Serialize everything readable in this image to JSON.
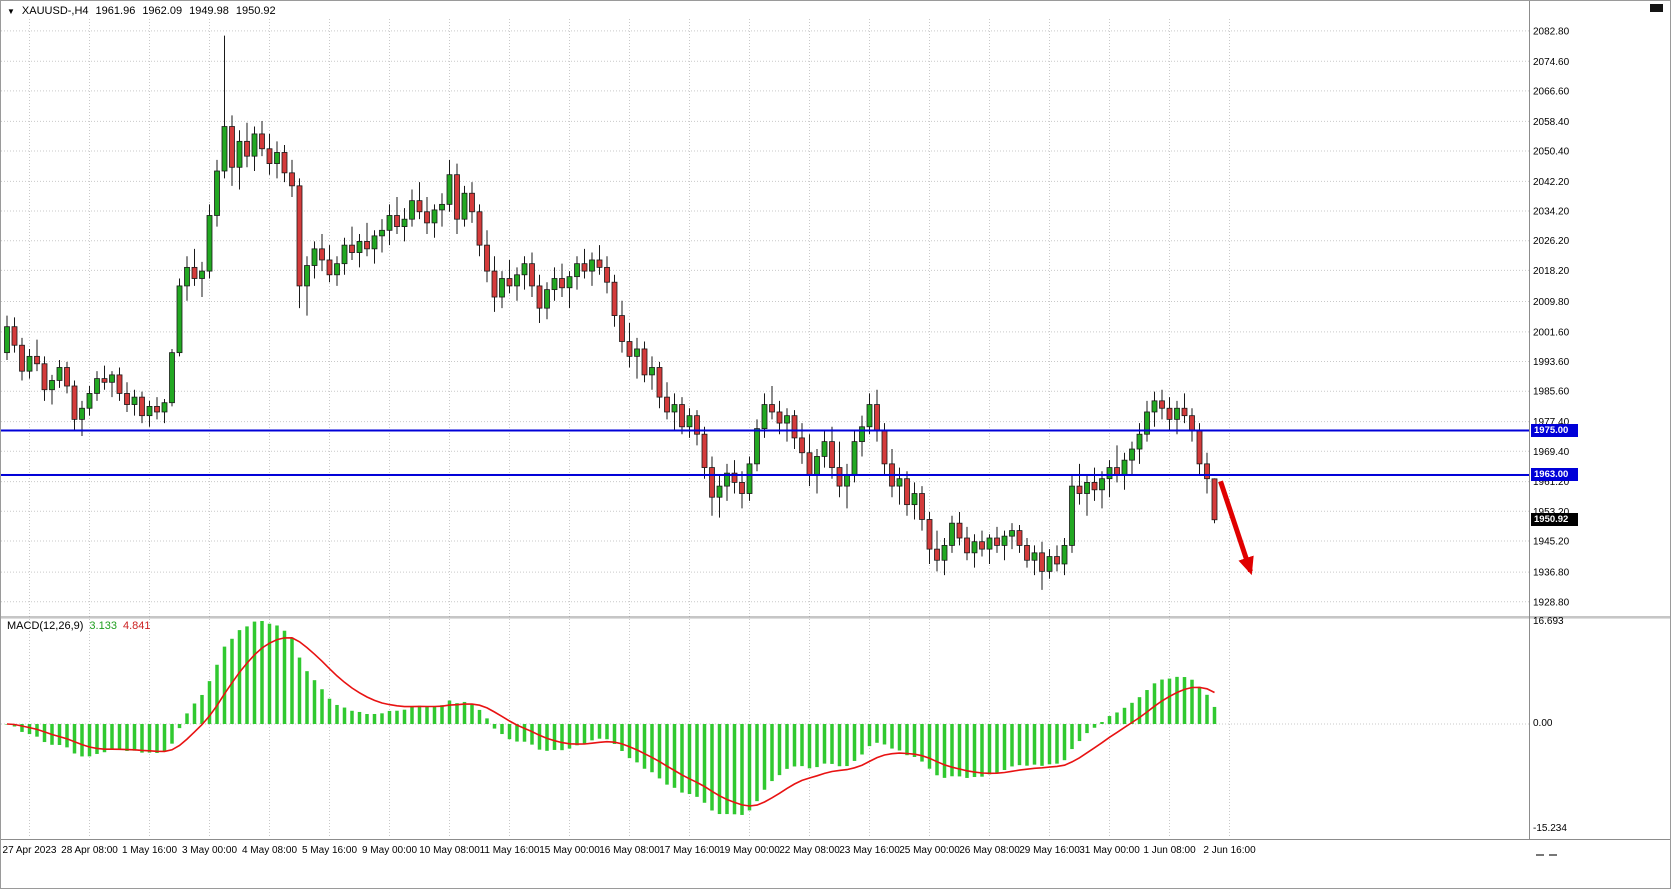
{
  "header": {
    "symbol_period": "XAUUSD-,H4",
    "open": "1961.96",
    "high": "1962.09",
    "low": "1949.98",
    "close": "1950.92"
  },
  "colors": {
    "candle_up": "#22a822",
    "candle_down": "#d43b3b",
    "wick": "#1a1a1a",
    "grid": "#c9c9c9",
    "support_line": "#0000d8",
    "arrow": "#e00000",
    "macd_histogram": "#30c930",
    "macd_signal": "#e81212",
    "current_price_tag": "#000000"
  },
  "chart_data": [
    {
      "type": "candlestick",
      "name": "XAUUSD H4 price panel",
      "x_labels": [
        "27 Apr 2023",
        "28 Apr 08:00",
        "1 May 16:00",
        "3 May 00:00",
        "4 May 08:00",
        "5 May 16:00",
        "9 May 00:00",
        "10 May 08:00",
        "11 May 16:00",
        "15 May 00:00",
        "16 May 08:00",
        "17 May 16:00",
        "19 May 00:00",
        "22 May 08:00",
        "23 May 16:00",
        "25 May 00:00",
        "26 May 08:00",
        "29 May 16:00",
        "31 May 00:00",
        "1 Jun 08:00",
        "2 Jun 16:00"
      ],
      "first_label_bar_index": 3,
      "label_every_bars": 8,
      "y_axis_labels": [
        "2082.80",
        "2074.60",
        "2066.60",
        "2058.40",
        "2050.40",
        "2042.20",
        "2034.20",
        "2026.20",
        "2018.20",
        "2009.80",
        "2001.60",
        "1993.60",
        "1985.60",
        "1977.40",
        "1969.40",
        "1961.20",
        "1953.20",
        "1945.20",
        "1936.80",
        "1928.80"
      ],
      "y_range": [
        1925.5,
        2086.0
      ],
      "grid": "dotted",
      "horizontal_lines": [
        {
          "price": 1975.0,
          "label": "1975.00"
        },
        {
          "price": 1963.0,
          "label": "1963.00"
        }
      ],
      "current_price": {
        "value": 1950.92,
        "label": "1950.92"
      },
      "annotations": [
        {
          "type": "arrow",
          "from": {
            "bar": 161.8,
            "price": 1961.3
          },
          "to": {
            "bar": 165.8,
            "price": 1937.0
          }
        }
      ],
      "candles": [
        [
          1996.0,
          2006.0,
          1994.0,
          2003.0
        ],
        [
          2003.0,
          2005.5,
          1996.0,
          1998.0
        ],
        [
          1998.0,
          2000.0,
          1988.5,
          1991.0
        ],
        [
          1991.0,
          1997.0,
          1989.0,
          1995.0
        ],
        [
          1995.0,
          1999.5,
          1991.0,
          1993.0
        ],
        [
          1993.0,
          1995.0,
          1983.0,
          1986.0
        ],
        [
          1986.0,
          1990.0,
          1982.0,
          1988.5
        ],
        [
          1988.5,
          1994.0,
          1986.5,
          1992.0
        ],
        [
          1992.0,
          1993.5,
          1985.0,
          1987.0
        ],
        [
          1987.0,
          1988.5,
          1975.0,
          1978.0
        ],
        [
          1978.0,
          1983.0,
          1973.5,
          1981.0
        ],
        [
          1981.0,
          1987.0,
          1979.0,
          1985.0
        ],
        [
          1985.0,
          1991.0,
          1983.0,
          1989.0
        ],
        [
          1989.0,
          1992.5,
          1986.0,
          1988.0
        ],
        [
          1988.0,
          1991.0,
          1984.0,
          1990.0
        ],
        [
          1990.0,
          1992.0,
          1983.0,
          1985.0
        ],
        [
          1985.0,
          1988.0,
          1980.0,
          1982.0
        ],
        [
          1982.0,
          1986.0,
          1979.0,
          1984.0
        ],
        [
          1984.0,
          1985.5,
          1977.0,
          1979.0
        ],
        [
          1979.0,
          1983.0,
          1976.0,
          1981.5
        ],
        [
          1981.5,
          1984.0,
          1978.0,
          1980.0
        ],
        [
          1980.0,
          1983.5,
          1977.0,
          1982.5
        ],
        [
          1982.5,
          1997.0,
          1981.5,
          1996.0
        ],
        [
          1996.0,
          2016.0,
          1995.0,
          2014.0
        ],
        [
          2014.0,
          2022.0,
          2010.0,
          2019.0
        ],
        [
          2019.0,
          2024.0,
          2014.0,
          2016.0
        ],
        [
          2016.0,
          2020.5,
          2011.0,
          2018.0
        ],
        [
          2018.0,
          2036.0,
          2016.0,
          2033.0
        ],
        [
          2033.0,
          2048.0,
          2030.0,
          2045.0
        ],
        [
          2045.0,
          2081.5,
          2043.0,
          2057.0
        ],
        [
          2057.0,
          2060.0,
          2041.0,
          2046.0
        ],
        [
          2046.0,
          2056.0,
          2040.0,
          2053.0
        ],
        [
          2053.0,
          2058.0,
          2046.0,
          2049.0
        ],
        [
          2049.0,
          2057.0,
          2045.0,
          2055.0
        ],
        [
          2055.0,
          2058.5,
          2049.0,
          2051.0
        ],
        [
          2051.0,
          2055.0,
          2044.0,
          2047.0
        ],
        [
          2047.0,
          2053.0,
          2043.0,
          2050.0
        ],
        [
          2050.0,
          2052.0,
          2042.0,
          2044.5
        ],
        [
          2044.5,
          2048.0,
          2038.0,
          2041.0
        ],
        [
          2041.0,
          2043.0,
          2008.0,
          2014.0
        ],
        [
          2014.0,
          2022.0,
          2006.0,
          2019.5
        ],
        [
          2019.5,
          2026.0,
          2016.0,
          2024.0
        ],
        [
          2024.0,
          2028.0,
          2018.0,
          2021.0
        ],
        [
          2021.0,
          2025.0,
          2015.0,
          2017.0
        ],
        [
          2017.0,
          2022.0,
          2014.0,
          2020.0
        ],
        [
          2020.0,
          2027.0,
          2017.0,
          2025.0
        ],
        [
          2025.0,
          2030.0,
          2021.0,
          2023.0
        ],
        [
          2023.0,
          2028.0,
          2019.0,
          2026.0
        ],
        [
          2026.0,
          2031.0,
          2022.0,
          2024.0
        ],
        [
          2024.0,
          2029.0,
          2020.0,
          2027.5
        ],
        [
          2027.5,
          2032.0,
          2023.0,
          2029.0
        ],
        [
          2029.0,
          2036.0,
          2025.0,
          2033.0
        ],
        [
          2033.0,
          2038.0,
          2028.0,
          2030.0
        ],
        [
          2030.0,
          2035.0,
          2026.0,
          2032.0
        ],
        [
          2032.0,
          2040.0,
          2030.0,
          2037.0
        ],
        [
          2037.0,
          2042.0,
          2032.0,
          2034.0
        ],
        [
          2034.0,
          2038.0,
          2028.0,
          2031.0
        ],
        [
          2031.0,
          2036.0,
          2027.0,
          2034.5
        ],
        [
          2034.5,
          2039.0,
          2030.0,
          2036.0
        ],
        [
          2036.0,
          2048.0,
          2034.0,
          2044.0
        ],
        [
          2044.0,
          2047.0,
          2028.0,
          2032.0
        ],
        [
          2032.0,
          2041.0,
          2030.0,
          2039.0
        ],
        [
          2039.0,
          2042.0,
          2031.0,
          2034.0
        ],
        [
          2034.0,
          2036.0,
          2022.0,
          2025.0
        ],
        [
          2025.0,
          2029.0,
          2015.0,
          2018.0
        ],
        [
          2018.0,
          2022.0,
          2007.0,
          2011.0
        ],
        [
          2011.0,
          2018.0,
          2008.0,
          2016.0
        ],
        [
          2016.0,
          2021.0,
          2012.0,
          2014.0
        ],
        [
          2014.0,
          2019.0,
          2010.0,
          2017.0
        ],
        [
          2017.0,
          2022.0,
          2013.0,
          2020.0
        ],
        [
          2020.0,
          2023.0,
          2011.0,
          2014.0
        ],
        [
          2014.0,
          2017.0,
          2004.0,
          2008.0
        ],
        [
          2008.0,
          2015.0,
          2005.0,
          2013.0
        ],
        [
          2013.0,
          2019.0,
          2010.0,
          2016.0
        ],
        [
          2016.0,
          2020.0,
          2011.0,
          2013.5
        ],
        [
          2013.5,
          2018.0,
          2008.0,
          2016.5
        ],
        [
          2016.5,
          2022.0,
          2013.0,
          2020.0
        ],
        [
          2020.0,
          2024.0,
          2016.0,
          2018.0
        ],
        [
          2018.0,
          2023.0,
          2014.0,
          2021.0
        ],
        [
          2021.0,
          2025.0,
          2017.0,
          2019.0
        ],
        [
          2019.0,
          2022.0,
          2012.0,
          2015.0
        ],
        [
          2015.0,
          2017.0,
          2003.0,
          2006.0
        ],
        [
          2006.0,
          2010.0,
          1996.0,
          1999.0
        ],
        [
          1999.0,
          2004.0,
          1992.0,
          1995.0
        ],
        [
          1995.0,
          2000.0,
          1989.0,
          1997.0
        ],
        [
          1997.0,
          1999.0,
          1988.0,
          1990.0
        ],
        [
          1990.0,
          1995.0,
          1986.0,
          1992.0
        ],
        [
          1992.0,
          1993.5,
          1981.0,
          1984.0
        ],
        [
          1984.0,
          1988.0,
          1978.0,
          1980.0
        ],
        [
          1980.0,
          1985.0,
          1975.0,
          1982.0
        ],
        [
          1982.0,
          1984.0,
          1974.0,
          1976.0
        ],
        [
          1976.0,
          1981.0,
          1973.0,
          1979.0
        ],
        [
          1979.0,
          1980.5,
          1971.0,
          1974.0
        ],
        [
          1974.0,
          1976.0,
          1962.0,
          1965.0
        ],
        [
          1965.0,
          1968.0,
          1952.0,
          1957.0
        ],
        [
          1957.0,
          1963.0,
          1951.5,
          1960.0
        ],
        [
          1960.0,
          1966.0,
          1956.0,
          1963.5
        ],
        [
          1963.5,
          1967.0,
          1958.0,
          1961.0
        ],
        [
          1961.0,
          1964.0,
          1954.0,
          1958.0
        ],
        [
          1958.0,
          1968.0,
          1956.0,
          1966.0
        ],
        [
          1966.0,
          1978.0,
          1964.0,
          1975.5
        ],
        [
          1975.5,
          1985.0,
          1973.0,
          1982.0
        ],
        [
          1982.0,
          1987.0,
          1978.0,
          1980.0
        ],
        [
          1980.0,
          1983.0,
          1974.0,
          1977.0
        ],
        [
          1977.0,
          1981.0,
          1972.0,
          1979.0
        ],
        [
          1979.0,
          1980.5,
          1970.0,
          1973.0
        ],
        [
          1973.0,
          1977.0,
          1966.0,
          1969.0
        ],
        [
          1969.0,
          1974.0,
          1960.0,
          1963.0
        ],
        [
          1963.0,
          1970.0,
          1958.0,
          1968.0
        ],
        [
          1968.0,
          1975.0,
          1965.0,
          1972.0
        ],
        [
          1972.0,
          1976.0,
          1962.0,
          1965.0
        ],
        [
          1965.0,
          1972.0,
          1957.0,
          1960.0
        ],
        [
          1960.0,
          1966.0,
          1954.0,
          1963.0
        ],
        [
          1963.0,
          1975.0,
          1961.0,
          1972.0
        ],
        [
          1972.0,
          1979.0,
          1968.0,
          1976.0
        ],
        [
          1976.0,
          1985.0,
          1974.0,
          1982.0
        ],
        [
          1982.0,
          1986.0,
          1972.0,
          1975.0
        ],
        [
          1975.0,
          1977.0,
          1963.0,
          1966.0
        ],
        [
          1966.0,
          1970.0,
          1957.0,
          1960.0
        ],
        [
          1960.0,
          1965.0,
          1955.0,
          1962.0
        ],
        [
          1962.0,
          1964.0,
          1952.0,
          1955.0
        ],
        [
          1955.0,
          1961.0,
          1951.0,
          1958.0
        ],
        [
          1958.0,
          1960.0,
          1948.0,
          1951.0
        ],
        [
          1951.0,
          1953.0,
          1939.0,
          1943.0
        ],
        [
          1943.0,
          1948.0,
          1937.0,
          1940.0
        ],
        [
          1940.0,
          1946.0,
          1936.0,
          1944.0
        ],
        [
          1944.0,
          1952.0,
          1942.0,
          1950.0
        ],
        [
          1950.0,
          1953.0,
          1944.0,
          1946.0
        ],
        [
          1946.0,
          1949.0,
          1940.0,
          1942.0
        ],
        [
          1942.0,
          1947.0,
          1938.0,
          1945.0
        ],
        [
          1945.0,
          1948.0,
          1941.0,
          1943.0
        ],
        [
          1943.0,
          1947.0,
          1939.0,
          1946.0
        ],
        [
          1946.0,
          1949.0,
          1942.0,
          1944.0
        ],
        [
          1944.0,
          1948.0,
          1940.0,
          1946.5
        ],
        [
          1946.5,
          1950.0,
          1943.0,
          1948.0
        ],
        [
          1948.0,
          1949.5,
          1942.0,
          1944.0
        ],
        [
          1944.0,
          1946.0,
          1938.0,
          1940.0
        ],
        [
          1940.0,
          1944.0,
          1936.0,
          1942.0
        ],
        [
          1942.0,
          1945.0,
          1932.0,
          1937.0
        ],
        [
          1937.0,
          1943.0,
          1935.0,
          1941.0
        ],
        [
          1941.0,
          1944.0,
          1937.0,
          1939.0
        ],
        [
          1939.0,
          1946.0,
          1936.0,
          1944.0
        ],
        [
          1944.0,
          1963.0,
          1942.0,
          1960.0
        ],
        [
          1960.0,
          1966.0,
          1955.0,
          1958.0
        ],
        [
          1958.0,
          1963.0,
          1952.0,
          1961.0
        ],
        [
          1961.0,
          1965.0,
          1956.0,
          1959.0
        ],
        [
          1959.0,
          1964.0,
          1954.0,
          1962.0
        ],
        [
          1962.0,
          1967.0,
          1957.0,
          1965.0
        ],
        [
          1965.0,
          1971.0,
          1961.0,
          1963.0
        ],
        [
          1963.0,
          1969.0,
          1959.0,
          1967.0
        ],
        [
          1967.0,
          1972.0,
          1963.0,
          1970.0
        ],
        [
          1970.0,
          1977.0,
          1966.0,
          1974.0
        ],
        [
          1974.0,
          1983.0,
          1972.0,
          1980.0
        ],
        [
          1980.0,
          1985.5,
          1976.0,
          1983.0
        ],
        [
          1983.0,
          1986.0,
          1978.0,
          1981.0
        ],
        [
          1981.0,
          1984.0,
          1975.0,
          1978.0
        ],
        [
          1978.0,
          1983.0,
          1974.0,
          1981.0
        ],
        [
          1981.0,
          1985.0,
          1977.0,
          1979.0
        ],
        [
          1979.0,
          1981.0,
          1972.0,
          1975.0
        ],
        [
          1975.0,
          1977.0,
          1963.0,
          1966.0
        ],
        [
          1966.0,
          1969.0,
          1958.0,
          1962.0
        ],
        [
          1961.96,
          1962.09,
          1949.98,
          1950.92
        ]
      ]
    },
    {
      "type": "bar",
      "name": "MACD indicator panel",
      "label": "MACD(12,26,9)",
      "value_main": "3.133",
      "value_signal": "4.841",
      "params": {
        "fast": 12,
        "slow": 26,
        "signal_period": 9
      },
      "scale_labels": {
        "max": "16.693",
        "zero": "0.00",
        "min": "-15.234"
      },
      "note": "histogram and signal line derived from closes of the candlestick series with MACD(12,26,9)"
    }
  ]
}
